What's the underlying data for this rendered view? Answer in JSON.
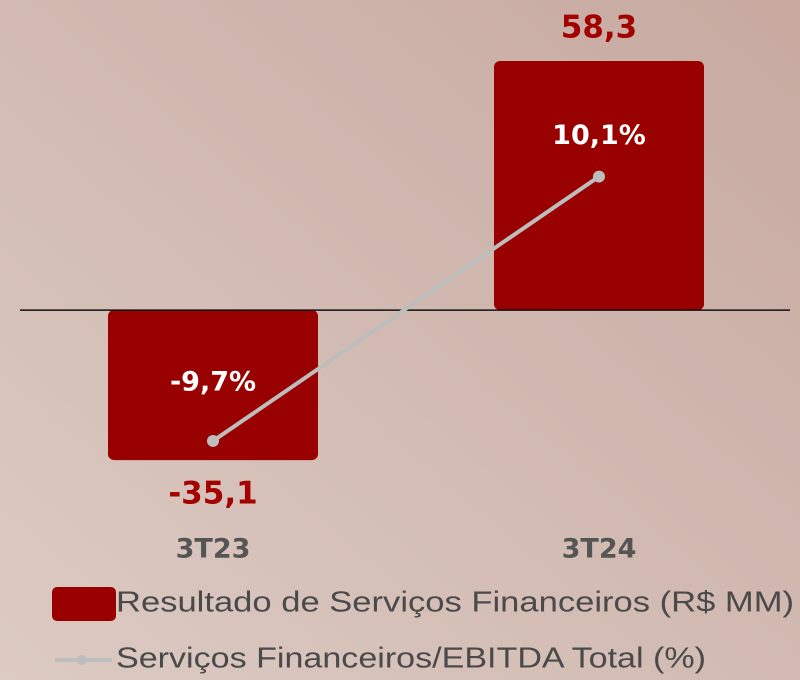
{
  "chart_data": {
    "type": "bar",
    "categories": [
      "3T23",
      "3T24"
    ],
    "series": [
      {
        "name": "Resultado de Serviços Financeiros (R$ MM)",
        "type": "bar",
        "color": "#990000",
        "values": [
          -35.1,
          58.3
        ],
        "value_labels": [
          "-35,1",
          "58,3"
        ]
      },
      {
        "name": "Serviços Financeiros/EBITDA Total (%)",
        "type": "line",
        "axis": "y2",
        "color": "#bdbdbd",
        "values": [
          -9.7,
          10.1
        ],
        "value_labels": [
          "-9,7%",
          "10,1%"
        ]
      }
    ],
    "ylim": [
      -40,
      70
    ],
    "y2lim": [
      -12.7,
      22.5
    ]
  }
}
